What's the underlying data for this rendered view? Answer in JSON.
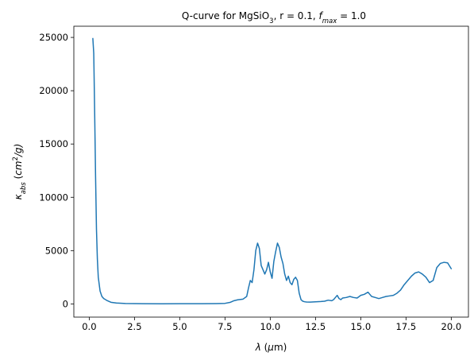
{
  "chart_data": {
    "type": "line",
    "title": {
      "prefix": "Q-curve for MgSiO",
      "sub": "3",
      "middle": ", r = 0.1, ",
      "f_symbol": "f",
      "f_sub": "max",
      "suffix": " = 1.0"
    },
    "xlabel": {
      "symbol": "λ",
      "unit_open": " (",
      "unit_mu": "μ",
      "unit_rest": "m)"
    },
    "ylabel": {
      "symbol": "κ",
      "sub": "abs",
      "unit_open": " (",
      "unit_cm": "cm",
      "unit_sup": "2",
      "unit_rest": "/g)"
    },
    "xlim": [
      -0.85,
      20.95
    ],
    "ylim": [
      -1240,
      26050
    ],
    "x_ticks": [
      0.0,
      2.5,
      5.0,
      7.5,
      10.0,
      12.5,
      15.0,
      17.5,
      20.0
    ],
    "x_tick_labels": [
      "0.0",
      "2.5",
      "5.0",
      "7.5",
      "10.0",
      "12.5",
      "15.0",
      "17.5",
      "20.0"
    ],
    "y_ticks": [
      0,
      5000,
      10000,
      15000,
      20000,
      25000
    ],
    "y_tick_labels": [
      "0",
      "5000",
      "10000",
      "15000",
      "20000",
      "25000"
    ],
    "grid": false,
    "legend": "none",
    "series": [
      {
        "color": "#1f77b4",
        "x": [
          0.2,
          0.25,
          0.3,
          0.35,
          0.4,
          0.45,
          0.5,
          0.6,
          0.7,
          0.8,
          1.0,
          1.2,
          1.5,
          2.0,
          3.0,
          4.0,
          5.0,
          6.0,
          7.0,
          7.5,
          7.8,
          8.0,
          8.2,
          8.5,
          8.7,
          8.8,
          8.9,
          9.0,
          9.1,
          9.2,
          9.3,
          9.4,
          9.5,
          9.6,
          9.7,
          9.8,
          9.9,
          10.0,
          10.1,
          10.2,
          10.3,
          10.4,
          10.5,
          10.6,
          10.7,
          10.8,
          10.9,
          11.0,
          11.1,
          11.2,
          11.3,
          11.4,
          11.5,
          11.6,
          11.7,
          11.8,
          11.9,
          12.0,
          12.2,
          12.5,
          12.8,
          13.0,
          13.2,
          13.4,
          13.5,
          13.6,
          13.7,
          13.8,
          13.9,
          14.0,
          14.2,
          14.4,
          14.6,
          14.8,
          15.0,
          15.2,
          15.4,
          15.5,
          15.6,
          15.8,
          16.0,
          16.2,
          16.4,
          16.6,
          16.8,
          17.0,
          17.2,
          17.4,
          17.6,
          17.8,
          18.0,
          18.2,
          18.4,
          18.6,
          18.8,
          19.0,
          19.2,
          19.4,
          19.6,
          19.8,
          20.0
        ],
        "y": [
          24900,
          23500,
          18000,
          12000,
          7000,
          4200,
          2500,
          1200,
          700,
          500,
          300,
          150,
          80,
          40,
          15,
          10,
          15,
          20,
          30,
          50,
          150,
          300,
          380,
          450,
          700,
          1500,
          2200,
          2000,
          3200,
          5000,
          5700,
          5200,
          3600,
          3200,
          2800,
          3200,
          3900,
          3000,
          2400,
          4000,
          4900,
          5700,
          5300,
          4400,
          3800,
          2800,
          2200,
          2600,
          2000,
          1800,
          2300,
          2500,
          2200,
          1000,
          400,
          250,
          200,
          180,
          170,
          200,
          220,
          250,
          350,
          300,
          400,
          600,
          800,
          500,
          400,
          550,
          600,
          700,
          600,
          550,
          800,
          900,
          1100,
          900,
          700,
          600,
          500,
          600,
          700,
          750,
          800,
          1000,
          1300,
          1800,
          2200,
          2600,
          2900,
          3000,
          2800,
          2500,
          2000,
          2200,
          3400,
          3800,
          3900,
          3850,
          3300
        ]
      }
    ]
  }
}
